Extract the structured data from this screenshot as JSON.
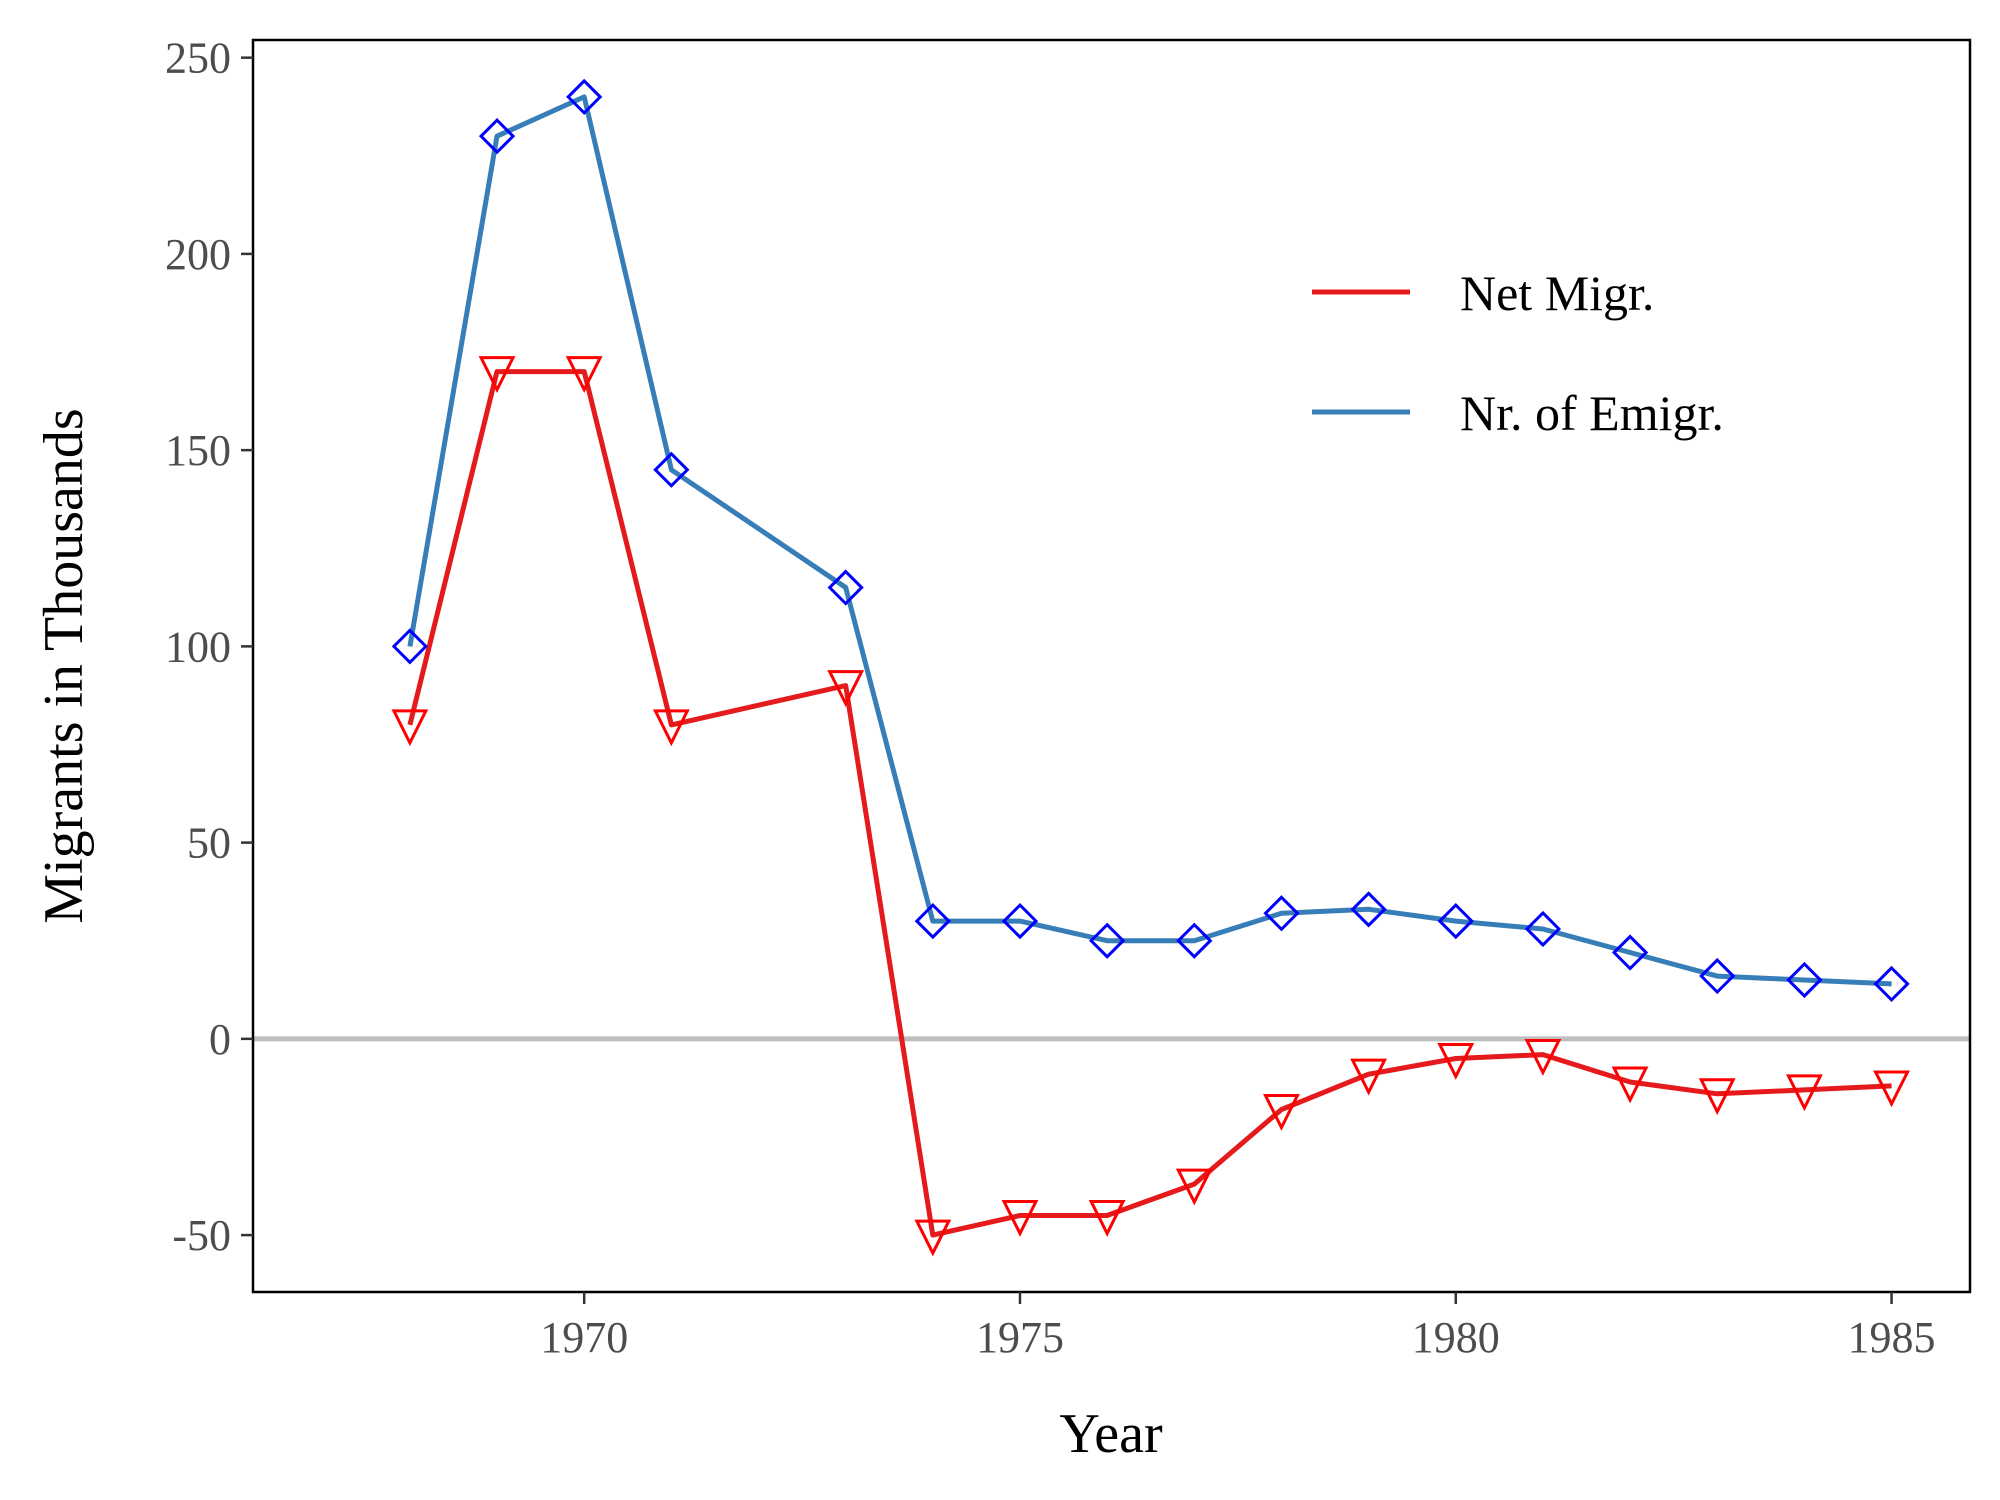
{
  "chart_data": {
    "type": "line",
    "title": "",
    "xlabel": "Year",
    "ylabel": "Migrants in Thousands",
    "xlim": [
      1966.2,
      1985.9
    ],
    "ylim": [
      -64.5,
      254.5
    ],
    "x_ticks": [
      1970,
      1975,
      1980,
      1985
    ],
    "y_ticks": [
      -50,
      0,
      50,
      100,
      150,
      200,
      250
    ],
    "reference_line_y": 0,
    "grid": false,
    "legend_position": "top-right",
    "series": [
      {
        "name": "Net Migr.",
        "color": "#e41a1c",
        "marker": "triangle-down",
        "marker_color": "#ff0000",
        "x": [
          1968,
          1969,
          1970,
          1971,
          1973,
          1974,
          1975,
          1976,
          1977,
          1978,
          1979,
          1980,
          1981,
          1982,
          1983,
          1984,
          1985
        ],
        "values": [
          80,
          170,
          170,
          80,
          90,
          -50,
          -45,
          -45,
          -37,
          -18,
          -9,
          -5,
          -4,
          -11,
          -14,
          -13,
          -12
        ]
      },
      {
        "name": "Nr. of Emigr.",
        "color": "#377eb8",
        "marker": "diamond",
        "marker_color": "#0000ff",
        "x": [
          1968,
          1969,
          1970,
          1971,
          1973,
          1974,
          1975,
          1976,
          1977,
          1978,
          1979,
          1980,
          1981,
          1982,
          1983,
          1984,
          1985
        ],
        "values": [
          100,
          230,
          240,
          145,
          115,
          30,
          30,
          25,
          25,
          32,
          33,
          30,
          28,
          22,
          16,
          15,
          14
        ]
      }
    ]
  }
}
